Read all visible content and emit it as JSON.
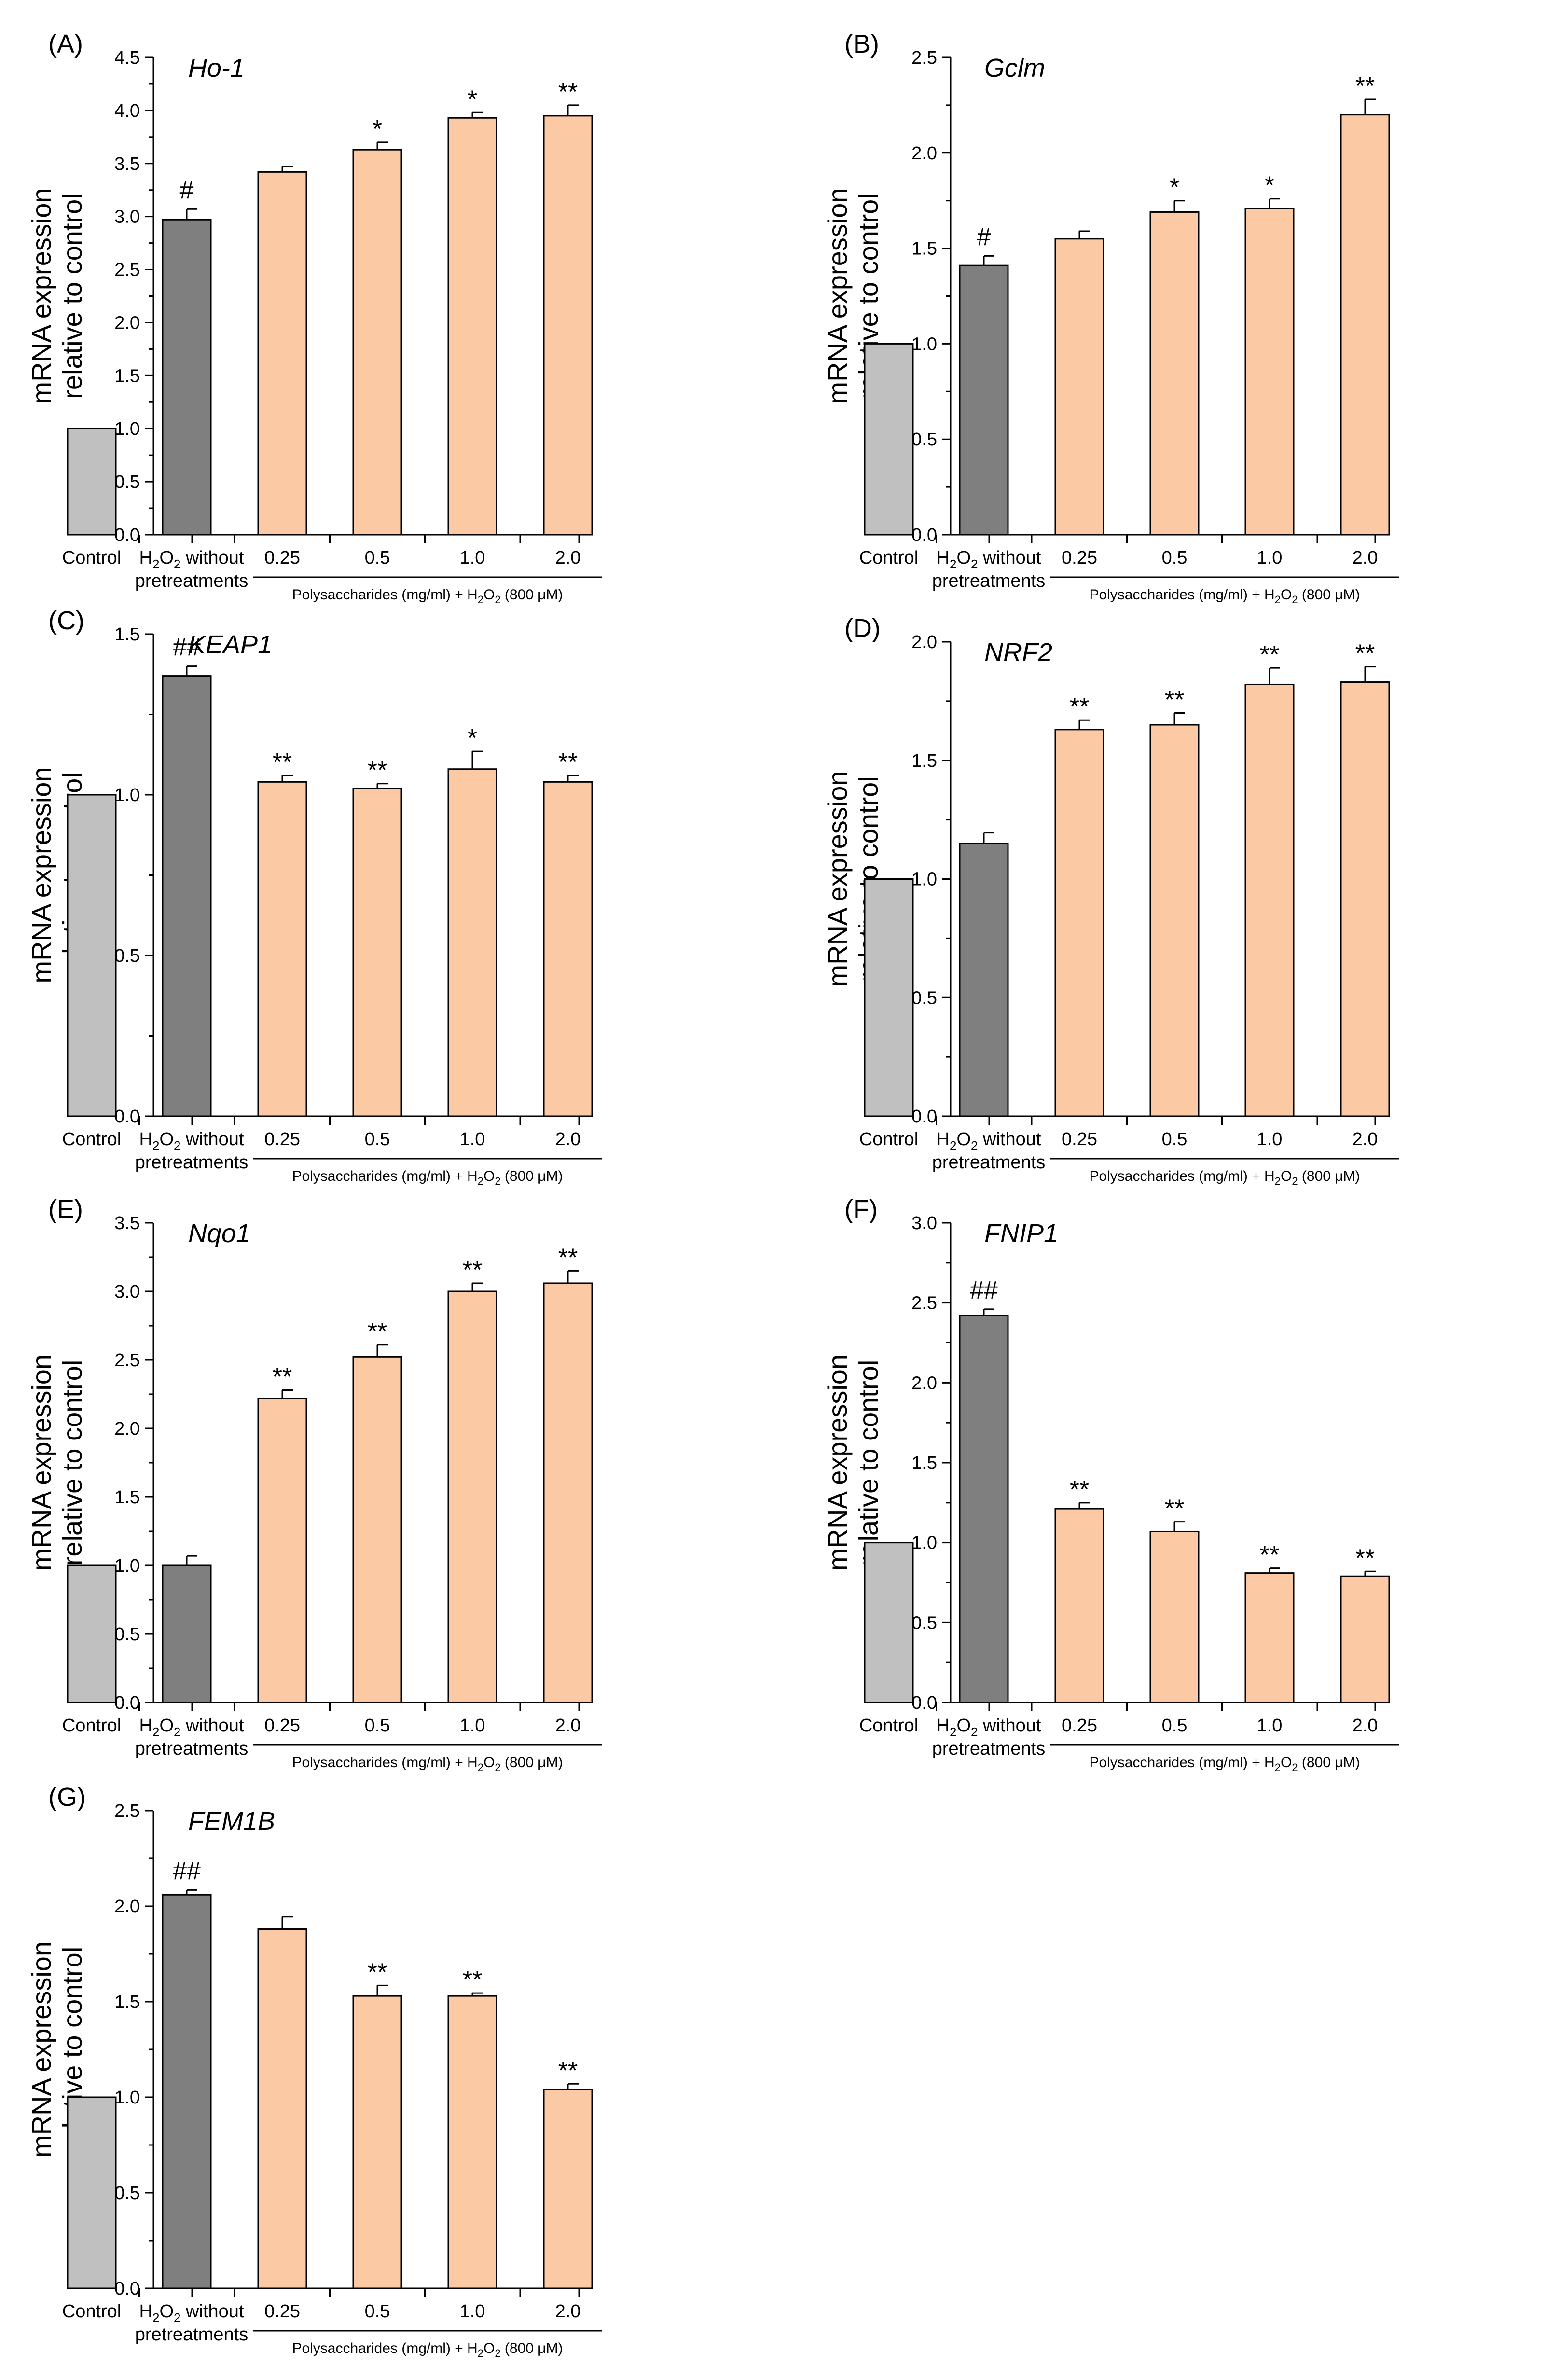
{
  "chart_data": [
    {
      "type": "bar",
      "panel": "(A)",
      "gene": "Ho-1",
      "ylabel": [
        "mRNA expression",
        "relative to control"
      ],
      "ylim": [
        0,
        4.5
      ],
      "yticks": [
        "0.0",
        "0.5",
        "1.0",
        "1.5",
        "2.0",
        "2.5",
        "3.0",
        "3.5",
        "4.0",
        "4.5"
      ],
      "categories": [
        "Control",
        "H2O2 without pretreatments",
        "0.25",
        "0.5",
        "1.0",
        "2.0"
      ],
      "values": [
        1.0,
        2.97,
        3.42,
        3.63,
        3.93,
        3.95
      ],
      "errors": [
        0,
        0.1,
        0.05,
        0.07,
        0.05,
        0.1
      ],
      "significance": [
        "",
        "#",
        "",
        "*",
        "*",
        "**"
      ],
      "group_label": "Polysaccharides (mg/ml) + H2O2 (800 μM)"
    },
    {
      "type": "bar",
      "panel": "(B)",
      "gene": "Gclm",
      "ylabel": [
        "mRNA expression",
        "relative to control"
      ],
      "ylim": [
        0,
        2.5
      ],
      "yticks": [
        "0.0",
        "0.5",
        "1.0",
        "1.5",
        "2.0",
        "2.5"
      ],
      "categories": [
        "Control",
        "H2O2 without pretreatments",
        "0.25",
        "0.5",
        "1.0",
        "2.0"
      ],
      "values": [
        1.0,
        1.41,
        1.55,
        1.69,
        1.71,
        2.2
      ],
      "errors": [
        0,
        0.05,
        0.04,
        0.06,
        0.05,
        0.08
      ],
      "significance": [
        "",
        "#",
        "",
        "*",
        "*",
        "**"
      ],
      "group_label": "Polysaccharides (mg/ml) + H2O2 (800 μM)"
    },
    {
      "type": "bar",
      "panel": "(C)",
      "gene": "KEAP1",
      "ylabel": [
        "mRNA expression",
        "relative to control"
      ],
      "ylim": [
        0,
        1.5
      ],
      "yticks": [
        "0.0",
        "0.5",
        "1.0",
        "1.5"
      ],
      "categories": [
        "Control",
        "H2O2 without pretreatments",
        "0.25",
        "0.5",
        "1.0",
        "2.0"
      ],
      "values": [
        1.0,
        1.37,
        1.04,
        1.02,
        1.08,
        1.04
      ],
      "errors": [
        0,
        0.03,
        0.02,
        0.015,
        0.055,
        0.02
      ],
      "significance": [
        "",
        "##",
        "**",
        "**",
        "*",
        "**"
      ],
      "group_label": "Polysaccharides (mg/ml) + H2O2 (800 μM)"
    },
    {
      "type": "bar",
      "panel": "(D)",
      "gene": "NRF2",
      "ylabel": [
        "mRNA expression",
        "relative to control"
      ],
      "ylim": [
        0,
        2.0
      ],
      "yticks": [
        "0.0",
        "0.5",
        "1.0",
        "1.5",
        "2.0"
      ],
      "categories": [
        "Control",
        "H2O2 without pretreatments",
        "0.25",
        "0.5",
        "1.0",
        "2.0"
      ],
      "values": [
        1.0,
        1.15,
        1.63,
        1.65,
        1.82,
        1.83
      ],
      "errors": [
        0,
        0.045,
        0.04,
        0.05,
        0.07,
        0.065
      ],
      "significance": [
        "",
        "",
        "**",
        "**",
        "**",
        "**"
      ],
      "group_label": "Polysaccharides (mg/ml) + H2O2 (800 μM)"
    },
    {
      "type": "bar",
      "panel": "(E)",
      "gene": "Nqo1",
      "ylabel": [
        "mRNA expression",
        "relative to control"
      ],
      "ylim": [
        0,
        3.5
      ],
      "yticks": [
        "0.0",
        "0.5",
        "1.0",
        "1.5",
        "2.0",
        "2.5",
        "3.0",
        "3.5"
      ],
      "categories": [
        "Control",
        "H2O2 without pretreatments",
        "0.25",
        "0.5",
        "1.0",
        "2.0"
      ],
      "values": [
        1.0,
        1.0,
        2.22,
        2.52,
        3.0,
        3.06
      ],
      "errors": [
        0,
        0.07,
        0.06,
        0.09,
        0.06,
        0.09
      ],
      "significance": [
        "",
        "",
        "**",
        "**",
        "**",
        "**"
      ],
      "group_label": "Polysaccharides (mg/ml) + H2O2 (800 μM)"
    },
    {
      "type": "bar",
      "panel": "(F)",
      "gene": "FNIP1",
      "ylabel": [
        "mRNA expression",
        "relative to control"
      ],
      "ylim": [
        0,
        3.0
      ],
      "yticks": [
        "0.0",
        "0.5",
        "1.0",
        "1.5",
        "2.0",
        "2.5",
        "3.0"
      ],
      "categories": [
        "Control",
        "H2O2 without pretreatments",
        "0.25",
        "0.5",
        "1.0",
        "2.0"
      ],
      "values": [
        1.0,
        2.42,
        1.21,
        1.07,
        0.81,
        0.79
      ],
      "errors": [
        0,
        0.04,
        0.04,
        0.06,
        0.03,
        0.03
      ],
      "significance": [
        "",
        "##",
        "**",
        "**",
        "**",
        "**"
      ],
      "group_label": "Polysaccharides (mg/ml) + H2O2 (800 μM)"
    },
    {
      "type": "bar",
      "panel": "(G)",
      "gene": "FEM1B",
      "ylabel": [
        "mRNA expression",
        "relative to control"
      ],
      "ylim": [
        0,
        2.5
      ],
      "yticks": [
        "0.0",
        "0.5",
        "1.0",
        "1.5",
        "2.0",
        "2.5"
      ],
      "categories": [
        "Control",
        "H2O2 without pretreatments",
        "0.25",
        "0.5",
        "1.0",
        "2.0"
      ],
      "values": [
        1.0,
        2.06,
        1.88,
        1.53,
        1.53,
        1.04
      ],
      "errors": [
        0,
        0.025,
        0.065,
        0.055,
        0.015,
        0.03
      ],
      "significance": [
        "",
        "##",
        "",
        "**",
        "**",
        "**"
      ],
      "group_label": "Polysaccharides (mg/ml) + H2O2 (800 μM)"
    }
  ],
  "colors": {
    "control": "#c0c0c0",
    "h2o2": "#7f7f7f",
    "treatment": "#fcc9a5",
    "stroke": "#000000"
  }
}
